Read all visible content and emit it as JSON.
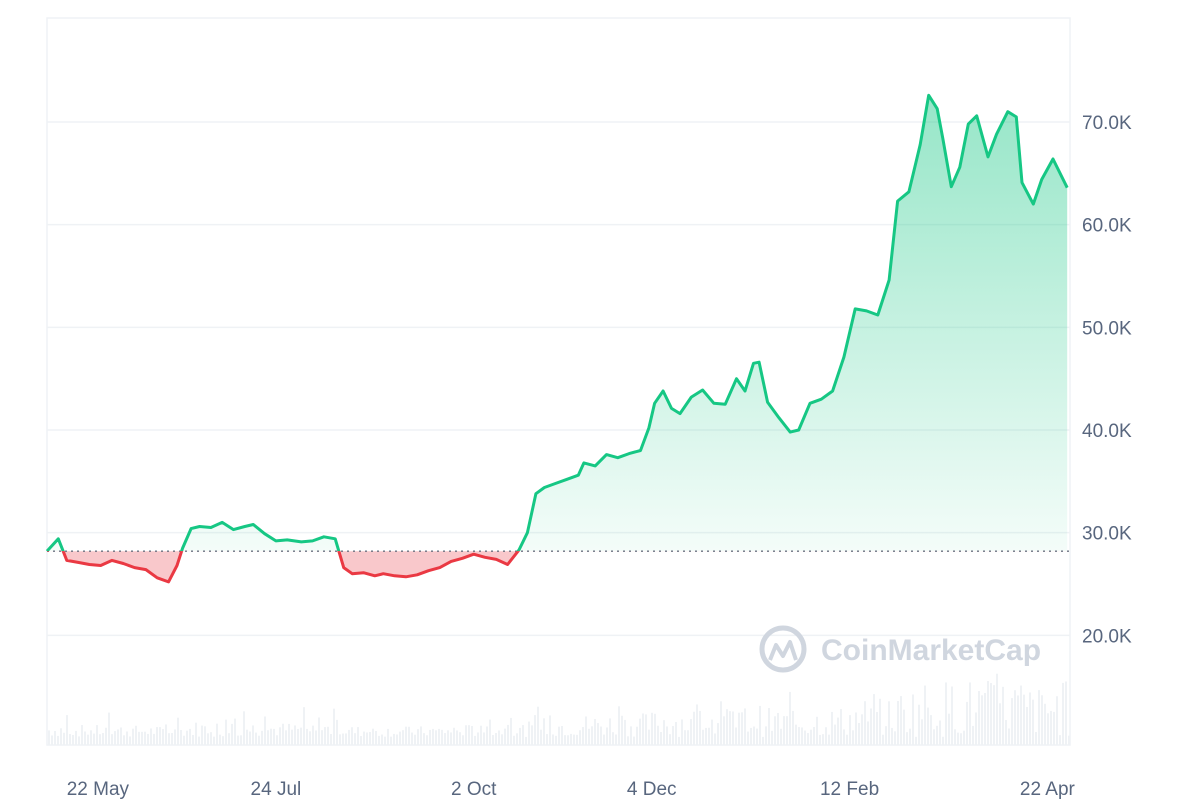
{
  "chart_data": {
    "type": "area",
    "baseline": 28200,
    "ylim": [
      10000,
      80000
    ],
    "yticks": [
      {
        "value": 20000,
        "label": "20.0K"
      },
      {
        "value": 30000,
        "label": "30.0K"
      },
      {
        "value": 40000,
        "label": "40.0K"
      },
      {
        "value": 50000,
        "label": "50.0K"
      },
      {
        "value": 60000,
        "label": "60.0K"
      },
      {
        "value": 70000,
        "label": "70.0K"
      }
    ],
    "xticks": [
      {
        "date": "2023-05-22",
        "label": "22 May"
      },
      {
        "date": "2023-07-24",
        "label": "24 Jul"
      },
      {
        "date": "2023-10-02",
        "label": "2 Oct"
      },
      {
        "date": "2023-12-04",
        "label": "4 Dec"
      },
      {
        "date": "2024-02-12",
        "label": "12 Feb"
      },
      {
        "date": "2024-04-22",
        "label": "22 Apr"
      }
    ],
    "xlim": [
      "2023-05-04",
      "2024-04-30"
    ],
    "series": [
      {
        "x": [
          "2023-05-04",
          "2023-05-08",
          "2023-05-11",
          "2023-05-15",
          "2023-05-19",
          "2023-05-23",
          "2023-05-27",
          "2023-05-31",
          "2023-06-04",
          "2023-06-08",
          "2023-06-12",
          "2023-06-16",
          "2023-06-19",
          "2023-06-21",
          "2023-06-24",
          "2023-06-27",
          "2023-07-01",
          "2023-07-05",
          "2023-07-09",
          "2023-07-13",
          "2023-07-16",
          "2023-07-20",
          "2023-07-24",
          "2023-07-28",
          "2023-08-02",
          "2023-08-06",
          "2023-08-10",
          "2023-08-14",
          "2023-08-17",
          "2023-08-20",
          "2023-08-24",
          "2023-08-28",
          "2023-08-31",
          "2023-09-04",
          "2023-09-08",
          "2023-09-12",
          "2023-09-16",
          "2023-09-20",
          "2023-09-24",
          "2023-09-28",
          "2023-10-02",
          "2023-10-06",
          "2023-10-10",
          "2023-10-14",
          "2023-10-18",
          "2023-10-21",
          "2023-10-24",
          "2023-10-27",
          "2023-10-31",
          "2023-11-04",
          "2023-11-08",
          "2023-11-10",
          "2023-11-14",
          "2023-11-18",
          "2023-11-22",
          "2023-11-26",
          "2023-11-30",
          "2023-12-03",
          "2023-12-05",
          "2023-12-08",
          "2023-12-11",
          "2023-12-14",
          "2023-12-18",
          "2023-12-22",
          "2023-12-26",
          "2023-12-30",
          "2024-01-03",
          "2024-01-06",
          "2024-01-09",
          "2024-01-11",
          "2024-01-14",
          "2024-01-18",
          "2024-01-22",
          "2024-01-25",
          "2024-01-29",
          "2024-02-02",
          "2024-02-06",
          "2024-02-10",
          "2024-02-14",
          "2024-02-18",
          "2024-02-22",
          "2024-02-26",
          "2024-02-29",
          "2024-03-04",
          "2024-03-08",
          "2024-03-11",
          "2024-03-14",
          "2024-03-16",
          "2024-03-19",
          "2024-03-22",
          "2024-03-25",
          "2024-03-28",
          "2024-04-01",
          "2024-04-04",
          "2024-04-08",
          "2024-04-11",
          "2024-04-13",
          "2024-04-17",
          "2024-04-20",
          "2024-04-24",
          "2024-04-29"
        ],
        "y": [
          28200,
          29400,
          27300,
          27100,
          26900,
          26800,
          27300,
          27000,
          26600,
          26400,
          25600,
          25200,
          26800,
          28500,
          30400,
          30600,
          30500,
          31000,
          30300,
          30600,
          30800,
          29900,
          29200,
          29300,
          29100,
          29200,
          29600,
          29400,
          26600,
          26000,
          26100,
          25800,
          26000,
          25800,
          25700,
          25900,
          26300,
          26600,
          27200,
          27500,
          27900,
          27600,
          27400,
          26900,
          28300,
          30000,
          33800,
          34400,
          34800,
          35200,
          35600,
          36800,
          36500,
          37600,
          37300,
          37700,
          38000,
          40200,
          42600,
          43800,
          42100,
          41600,
          43200,
          43900,
          42600,
          42500,
          45000,
          43800,
          46500,
          46600,
          42700,
          41200,
          39800,
          40000,
          42600,
          43000,
          43800,
          47100,
          51800,
          51600,
          51200,
          54600,
          62300,
          63200,
          67800,
          72600,
          71300,
          68400,
          63700,
          65600,
          69800,
          70600,
          66600,
          68800,
          71000,
          70500,
          64100,
          62000,
          64400,
          66400,
          63600
        ]
      }
    ],
    "watermark": "CoinMarketCap"
  }
}
